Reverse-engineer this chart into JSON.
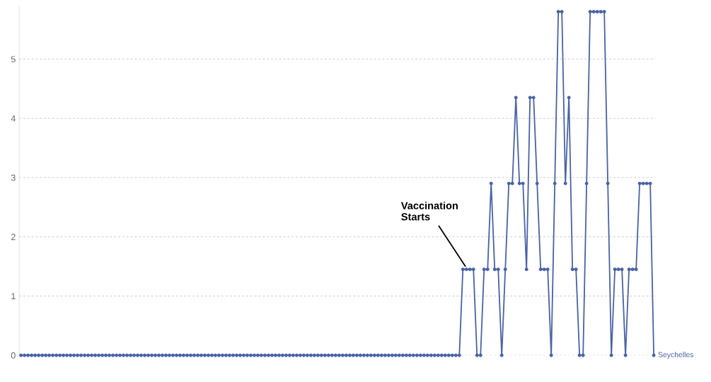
{
  "chart_data": {
    "type": "line",
    "categories": [
      null,
      null,
      null,
      null,
      null,
      null,
      null,
      null,
      null,
      null,
      null,
      null,
      null,
      null,
      null,
      null,
      null,
      null,
      null,
      null,
      null,
      null,
      null,
      null,
      null,
      null,
      null,
      null,
      null,
      null,
      null,
      null,
      null,
      null,
      null,
      null,
      null,
      null,
      null,
      null,
      null,
      null,
      null,
      null,
      null,
      null,
      null,
      null,
      null,
      null,
      null,
      null,
      null,
      null,
      null,
      null,
      null,
      null,
      null,
      null,
      null,
      null,
      null,
      null,
      null,
      null,
      null,
      null,
      null,
      null,
      null,
      null,
      null,
      null,
      null,
      null,
      null,
      null,
      null,
      null,
      null,
      null,
      null,
      null,
      null,
      null,
      null,
      null,
      null,
      null,
      null,
      null,
      null,
      null,
      null,
      null,
      null,
      null,
      null,
      null,
      null,
      null,
      null,
      null,
      null,
      null,
      null,
      null,
      null,
      null,
      null,
      null,
      null,
      null,
      null,
      null,
      null,
      null,
      null,
      null,
      null,
      null,
      null,
      null,
      null,
      null,
      null,
      null,
      null,
      null,
      null,
      null,
      null,
      null,
      null,
      null,
      null,
      null,
      null,
      null,
      null,
      null,
      null,
      null,
      null,
      null,
      null,
      null,
      null,
      null,
      null,
      null,
      null,
      null,
      null,
      null,
      null,
      null,
      null,
      null,
      null,
      null,
      null,
      null,
      null,
      null,
      null,
      null,
      null,
      null,
      null,
      null,
      null,
      null,
      null,
      null,
      null,
      null,
      null,
      null
    ],
    "series": [
      {
        "name": "Seychelles",
        "color": "#4a62a8",
        "values": [
          0,
          0,
          0,
          0,
          0,
          0,
          0,
          0,
          0,
          0,
          0,
          0,
          0,
          0,
          0,
          0,
          0,
          0,
          0,
          0,
          0,
          0,
          0,
          0,
          0,
          0,
          0,
          0,
          0,
          0,
          0,
          0,
          0,
          0,
          0,
          0,
          0,
          0,
          0,
          0,
          0,
          0,
          0,
          0,
          0,
          0,
          0,
          0,
          0,
          0,
          0,
          0,
          0,
          0,
          0,
          0,
          0,
          0,
          0,
          0,
          0,
          0,
          0,
          0,
          0,
          0,
          0,
          0,
          0,
          0,
          0,
          0,
          0,
          0,
          0,
          0,
          0,
          0,
          0,
          0,
          0,
          0,
          0,
          0,
          0,
          0,
          0,
          0,
          0,
          0,
          0,
          0,
          0,
          0,
          0,
          0,
          0,
          0,
          0,
          0,
          0,
          0,
          0,
          0,
          0,
          0,
          0,
          0,
          0,
          0,
          0,
          0,
          0,
          0,
          0,
          0,
          0,
          0,
          0,
          0,
          0,
          0,
          0,
          0,
          0,
          1.45,
          1.45,
          1.45,
          1.45,
          0,
          0,
          1.45,
          1.45,
          2.9,
          1.45,
          1.45,
          0,
          1.45,
          2.9,
          2.9,
          4.35,
          2.9,
          2.9,
          1.45,
          4.35,
          4.35,
          2.9,
          1.45,
          1.45,
          1.45,
          0,
          2.9,
          5.8,
          5.8,
          2.9,
          4.35,
          1.45,
          1.45,
          0,
          0,
          2.9,
          5.8,
          5.8,
          5.8,
          5.8,
          5.8,
          2.9,
          0,
          1.45,
          1.45,
          1.45,
          0,
          1.45,
          1.45,
          1.45,
          2.9,
          2.9,
          2.9,
          2.9,
          0
        ]
      }
    ],
    "ylim": [
      0,
      5.9
    ],
    "yticks": [
      0,
      1,
      2,
      3,
      4,
      5
    ],
    "grid": "y",
    "marker": "circle",
    "line_style": "solid",
    "tick_labels": "y",
    "annotations": [
      "Vaccination\nStarts"
    ]
  }
}
